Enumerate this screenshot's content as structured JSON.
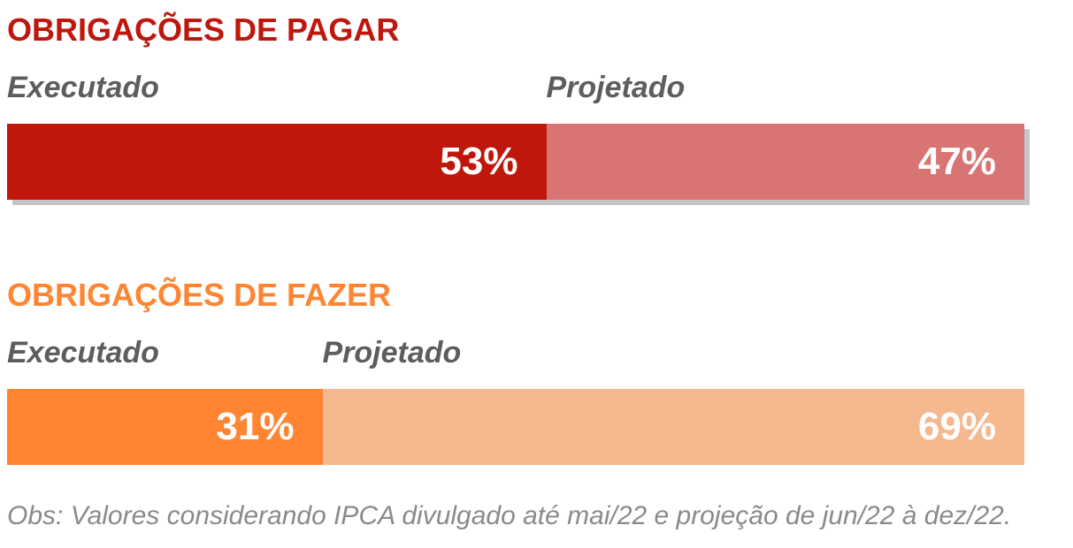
{
  "chart_data": [
    {
      "type": "bar",
      "orientation": "horizontal",
      "stacked": true,
      "title": "OBRIGAÇÕES DE PAGAR",
      "title_color": "#c0170d",
      "series": [
        {
          "name": "Executado",
          "value": 53,
          "label": "53%",
          "color": "#c0170d"
        },
        {
          "name": "Projetado",
          "value": 47,
          "label": "47%",
          "color": "#d87473"
        }
      ],
      "xlim": [
        0,
        100
      ],
      "grid": false,
      "shadow": true
    },
    {
      "type": "bar",
      "orientation": "horizontal",
      "stacked": true,
      "title": "OBRIGAÇÕES DE FAZER",
      "title_color": "#ff8533",
      "series": [
        {
          "name": "Executado",
          "value": 31,
          "label": "31%",
          "color": "#ff8533"
        },
        {
          "name": "Projetado",
          "value": 69,
          "label": "69%",
          "color": "#f6b88e"
        }
      ],
      "xlim": [
        0,
        100
      ],
      "grid": false,
      "shadow": false
    }
  ],
  "footnote": "Obs: Valores considerando IPCA divulgado até mai/22 e projeção de jun/22 à dez/22."
}
